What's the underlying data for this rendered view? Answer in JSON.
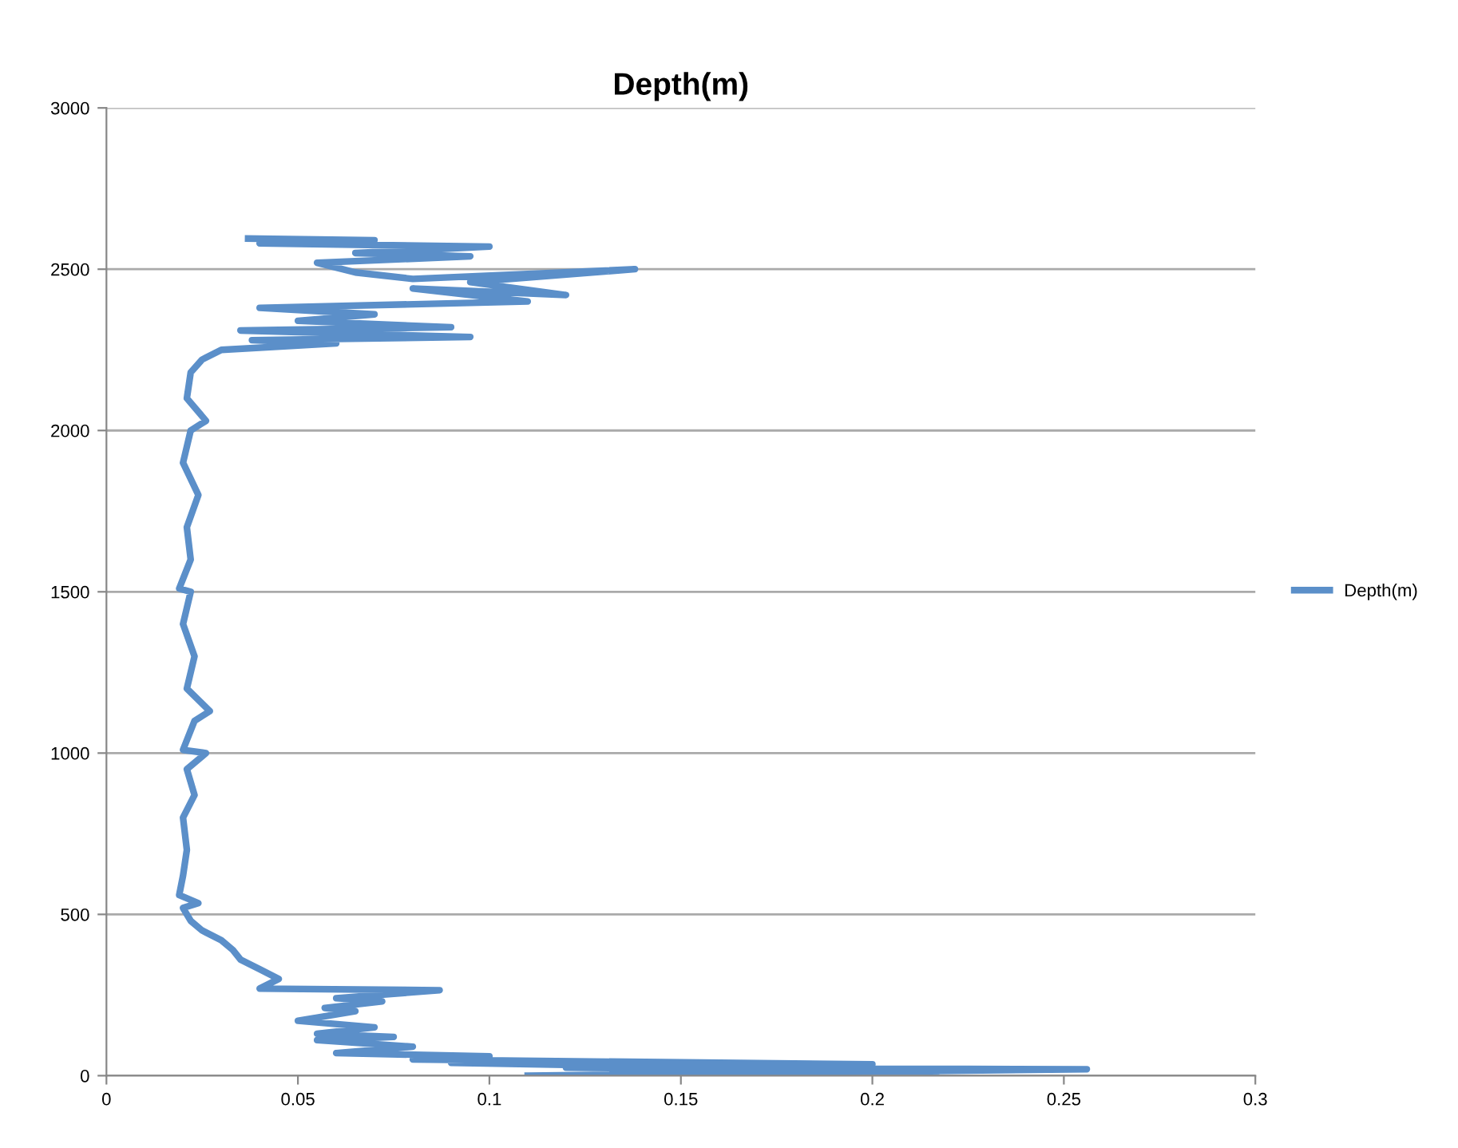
{
  "chart_data": {
    "type": "line",
    "title": "Depth(m)",
    "legend": "right",
    "grid": "y",
    "xlim": [
      0,
      0.3
    ],
    "xticks": [
      0,
      0.05,
      0.1,
      0.15,
      0.2,
      0.25,
      0.3
    ],
    "ylim": [
      0,
      3000
    ],
    "yticks": [
      0,
      500,
      1000,
      1500,
      2000,
      2500,
      3000
    ],
    "series": [
      {
        "name": "Depth(m)",
        "color": "#5b8fc9",
        "x": [
          0.11,
          0.256,
          0.12,
          0.217,
          0.09,
          0.2,
          0.08,
          0.1,
          0.06,
          0.08,
          0.055,
          0.075,
          0.055,
          0.07,
          0.05,
          0.065,
          0.057,
          0.072,
          0.06,
          0.087,
          0.04,
          0.045,
          0.04,
          0.035,
          0.033,
          0.03,
          0.025,
          0.022,
          0.02,
          0.024,
          0.019,
          0.02,
          0.021,
          0.02,
          0.023,
          0.021,
          0.026,
          0.02,
          0.023,
          0.027,
          0.021,
          0.023,
          0.02,
          0.022,
          0.019,
          0.022,
          0.021,
          0.024,
          0.02,
          0.022,
          0.026,
          0.021,
          0.022,
          0.025,
          0.03,
          0.06,
          0.038,
          0.095,
          0.035,
          0.09,
          0.05,
          0.07,
          0.04,
          0.11,
          0.08,
          0.12,
          0.095,
          0.138,
          0.08,
          0.065,
          0.055,
          0.095,
          0.065,
          0.1,
          0.04,
          0.07,
          0.037
        ],
        "values": [
          0,
          20,
          25,
          12,
          40,
          35,
          50,
          60,
          70,
          90,
          110,
          120,
          130,
          150,
          170,
          200,
          210,
          230,
          240,
          265,
          270,
          300,
          330,
          360,
          390,
          420,
          450,
          480,
          520,
          535,
          560,
          620,
          700,
          800,
          870,
          950,
          1000,
          1010,
          1100,
          1130,
          1200,
          1300,
          1400,
          1500,
          1510,
          1600,
          1700,
          1800,
          1900,
          2000,
          2030,
          2100,
          2180,
          2220,
          2250,
          2270,
          2280,
          2290,
          2310,
          2320,
          2340,
          2360,
          2380,
          2400,
          2440,
          2420,
          2460,
          2500,
          2470,
          2490,
          2520,
          2540,
          2550,
          2570,
          2580,
          2590,
          2595
        ]
      }
    ]
  }
}
